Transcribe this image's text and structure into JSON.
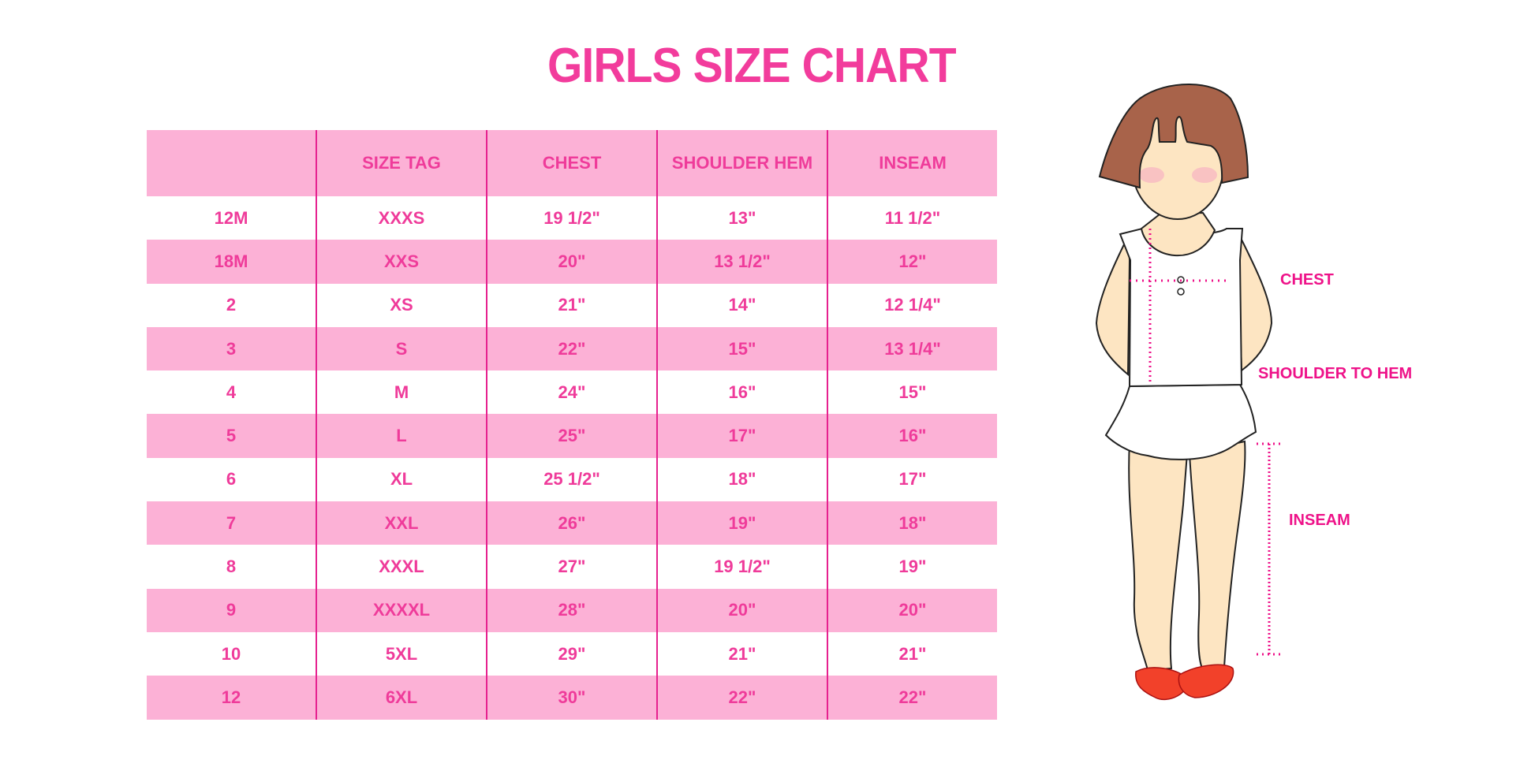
{
  "title": "GIRLS SIZE CHART",
  "table": {
    "headers": [
      "",
      "SIZE TAG",
      "CHEST",
      "SHOULDER HEM",
      "INSEAM"
    ],
    "rows": [
      [
        "12M",
        "XXXS",
        "19 1/2\"",
        "13\"",
        "11 1/2\""
      ],
      [
        "18M",
        "XXS",
        "20\"",
        "13 1/2\"",
        "12\""
      ],
      [
        "2",
        "XS",
        "21\"",
        "14\"",
        "12 1/4\""
      ],
      [
        "3",
        "S",
        "22\"",
        "15\"",
        "13 1/4\""
      ],
      [
        "4",
        "M",
        "24\"",
        "16\"",
        "15\""
      ],
      [
        "5",
        "L",
        "25\"",
        "17\"",
        "16\""
      ],
      [
        "6",
        "XL",
        "25 1/2\"",
        "18\"",
        "17\""
      ],
      [
        "7",
        "XXL",
        "26\"",
        "19\"",
        "18\""
      ],
      [
        "8",
        "XXXL",
        "27\"",
        "19 1/2\"",
        "19\""
      ],
      [
        "9",
        "XXXXL",
        "28\"",
        "20\"",
        "20\""
      ],
      [
        "10",
        "5XL",
        "29\"",
        "21\"",
        "21\""
      ],
      [
        "12",
        "6XL",
        "30\"",
        "22\"",
        "22\""
      ]
    ]
  },
  "figure": {
    "labels": {
      "chest": "CHEST",
      "shoulder_to_hem": "SHOULDER TO HEM",
      "inseam": "INSEAM"
    }
  },
  "colors": {
    "accent": "#ef3b9a",
    "band": "#fcb1d6",
    "divider": "#e6218f",
    "label": "#ee1289"
  }
}
